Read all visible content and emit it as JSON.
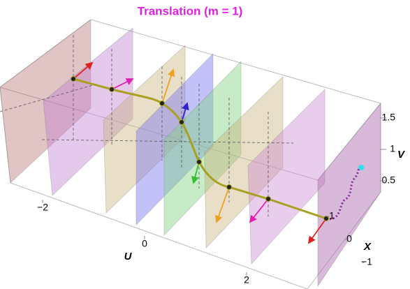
{
  "title": "Translation (m = 1)",
  "axes": {
    "u": {
      "label": "U",
      "ticks": [
        {
          "value": -2,
          "label": "−2"
        },
        0,
        2
      ]
    },
    "x": {
      "label": "X",
      "ticks": [
        {
          "value": -1,
          "label": "−1"
        },
        0,
        1
      ]
    },
    "v": {
      "label": "V",
      "ticks": [
        0.5,
        1,
        1.5
      ]
    }
  }
}
